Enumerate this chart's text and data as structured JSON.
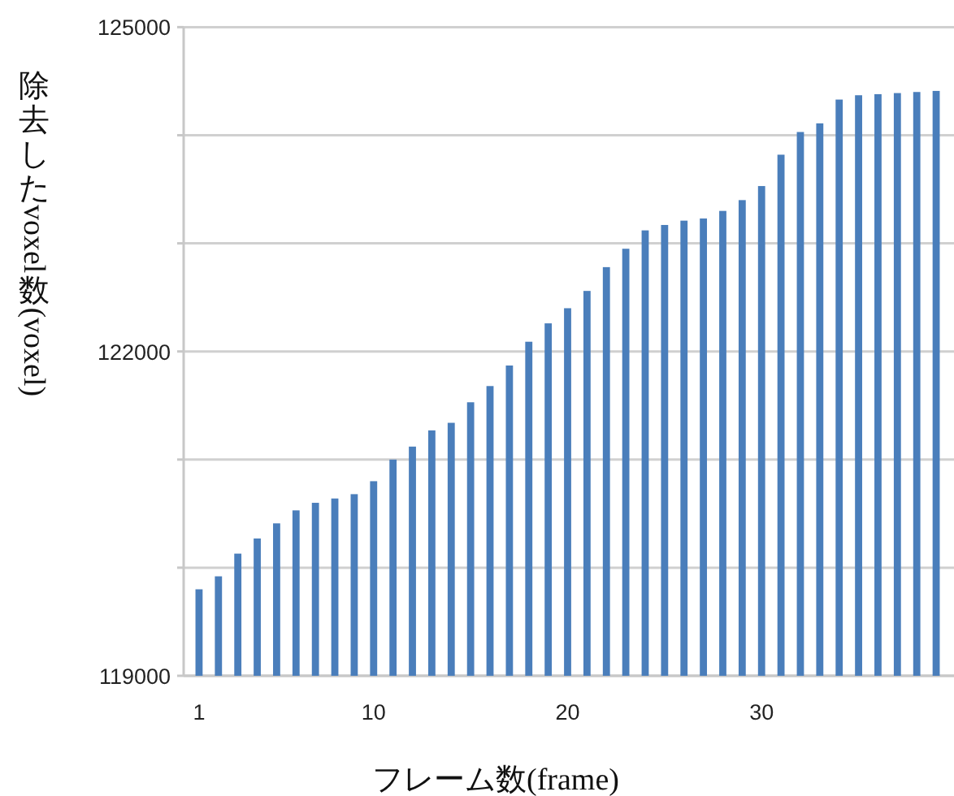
{
  "chart_data": {
    "type": "bar",
    "xlabel": "フレーム数(frame)",
    "ylabel": "除去した voxel 数(voxel)",
    "categories": [
      "1",
      null,
      null,
      null,
      null,
      null,
      null,
      null,
      null,
      "10",
      null,
      null,
      null,
      null,
      null,
      null,
      null,
      null,
      null,
      "20",
      null,
      null,
      null,
      null,
      null,
      null,
      null,
      null,
      null,
      "30",
      null,
      null,
      null,
      null,
      null,
      null,
      null,
      null,
      null
    ],
    "values": [
      119800,
      119920,
      120130,
      120270,
      120410,
      120530,
      120600,
      120640,
      120680,
      120800,
      121000,
      121120,
      121270,
      121340,
      121530,
      121680,
      121870,
      122090,
      122260,
      122400,
      122560,
      122780,
      122950,
      123120,
      123170,
      123210,
      123230,
      123300,
      123400,
      123530,
      123820,
      124030,
      124110,
      124330,
      124370,
      124380,
      124390,
      124400,
      124410
    ],
    "color": "#4a7ebb",
    "ylim": [
      119000,
      125000
    ],
    "yticks": [
      119000,
      {
        "value": 120000,
        "label": null
      },
      {
        "value": 121000,
        "label": null
      },
      122000,
      {
        "value": 123000,
        "label": null
      },
      {
        "value": 124000,
        "label": null
      },
      125000
    ],
    "grid": "y"
  }
}
